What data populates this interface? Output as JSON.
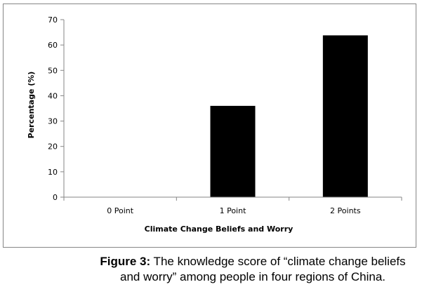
{
  "chart_data": {
    "type": "bar",
    "categories": [
      "0 Point",
      "1 Point",
      "2 Points"
    ],
    "values": [
      0,
      36,
      63.8
    ],
    "xlabel": "Climate Change Beliefs and Worry",
    "ylabel": "Percentage (%)",
    "ylim": [
      0,
      70
    ],
    "yticks": [
      0,
      10,
      20,
      30,
      40,
      50,
      60,
      70
    ],
    "bar_color": "#000000",
    "grid": false,
    "legend": "none"
  },
  "caption": {
    "label": "Figure 3:",
    "text": " The knowledge score of “climate change beliefs and worry” among people in four regions of China."
  }
}
